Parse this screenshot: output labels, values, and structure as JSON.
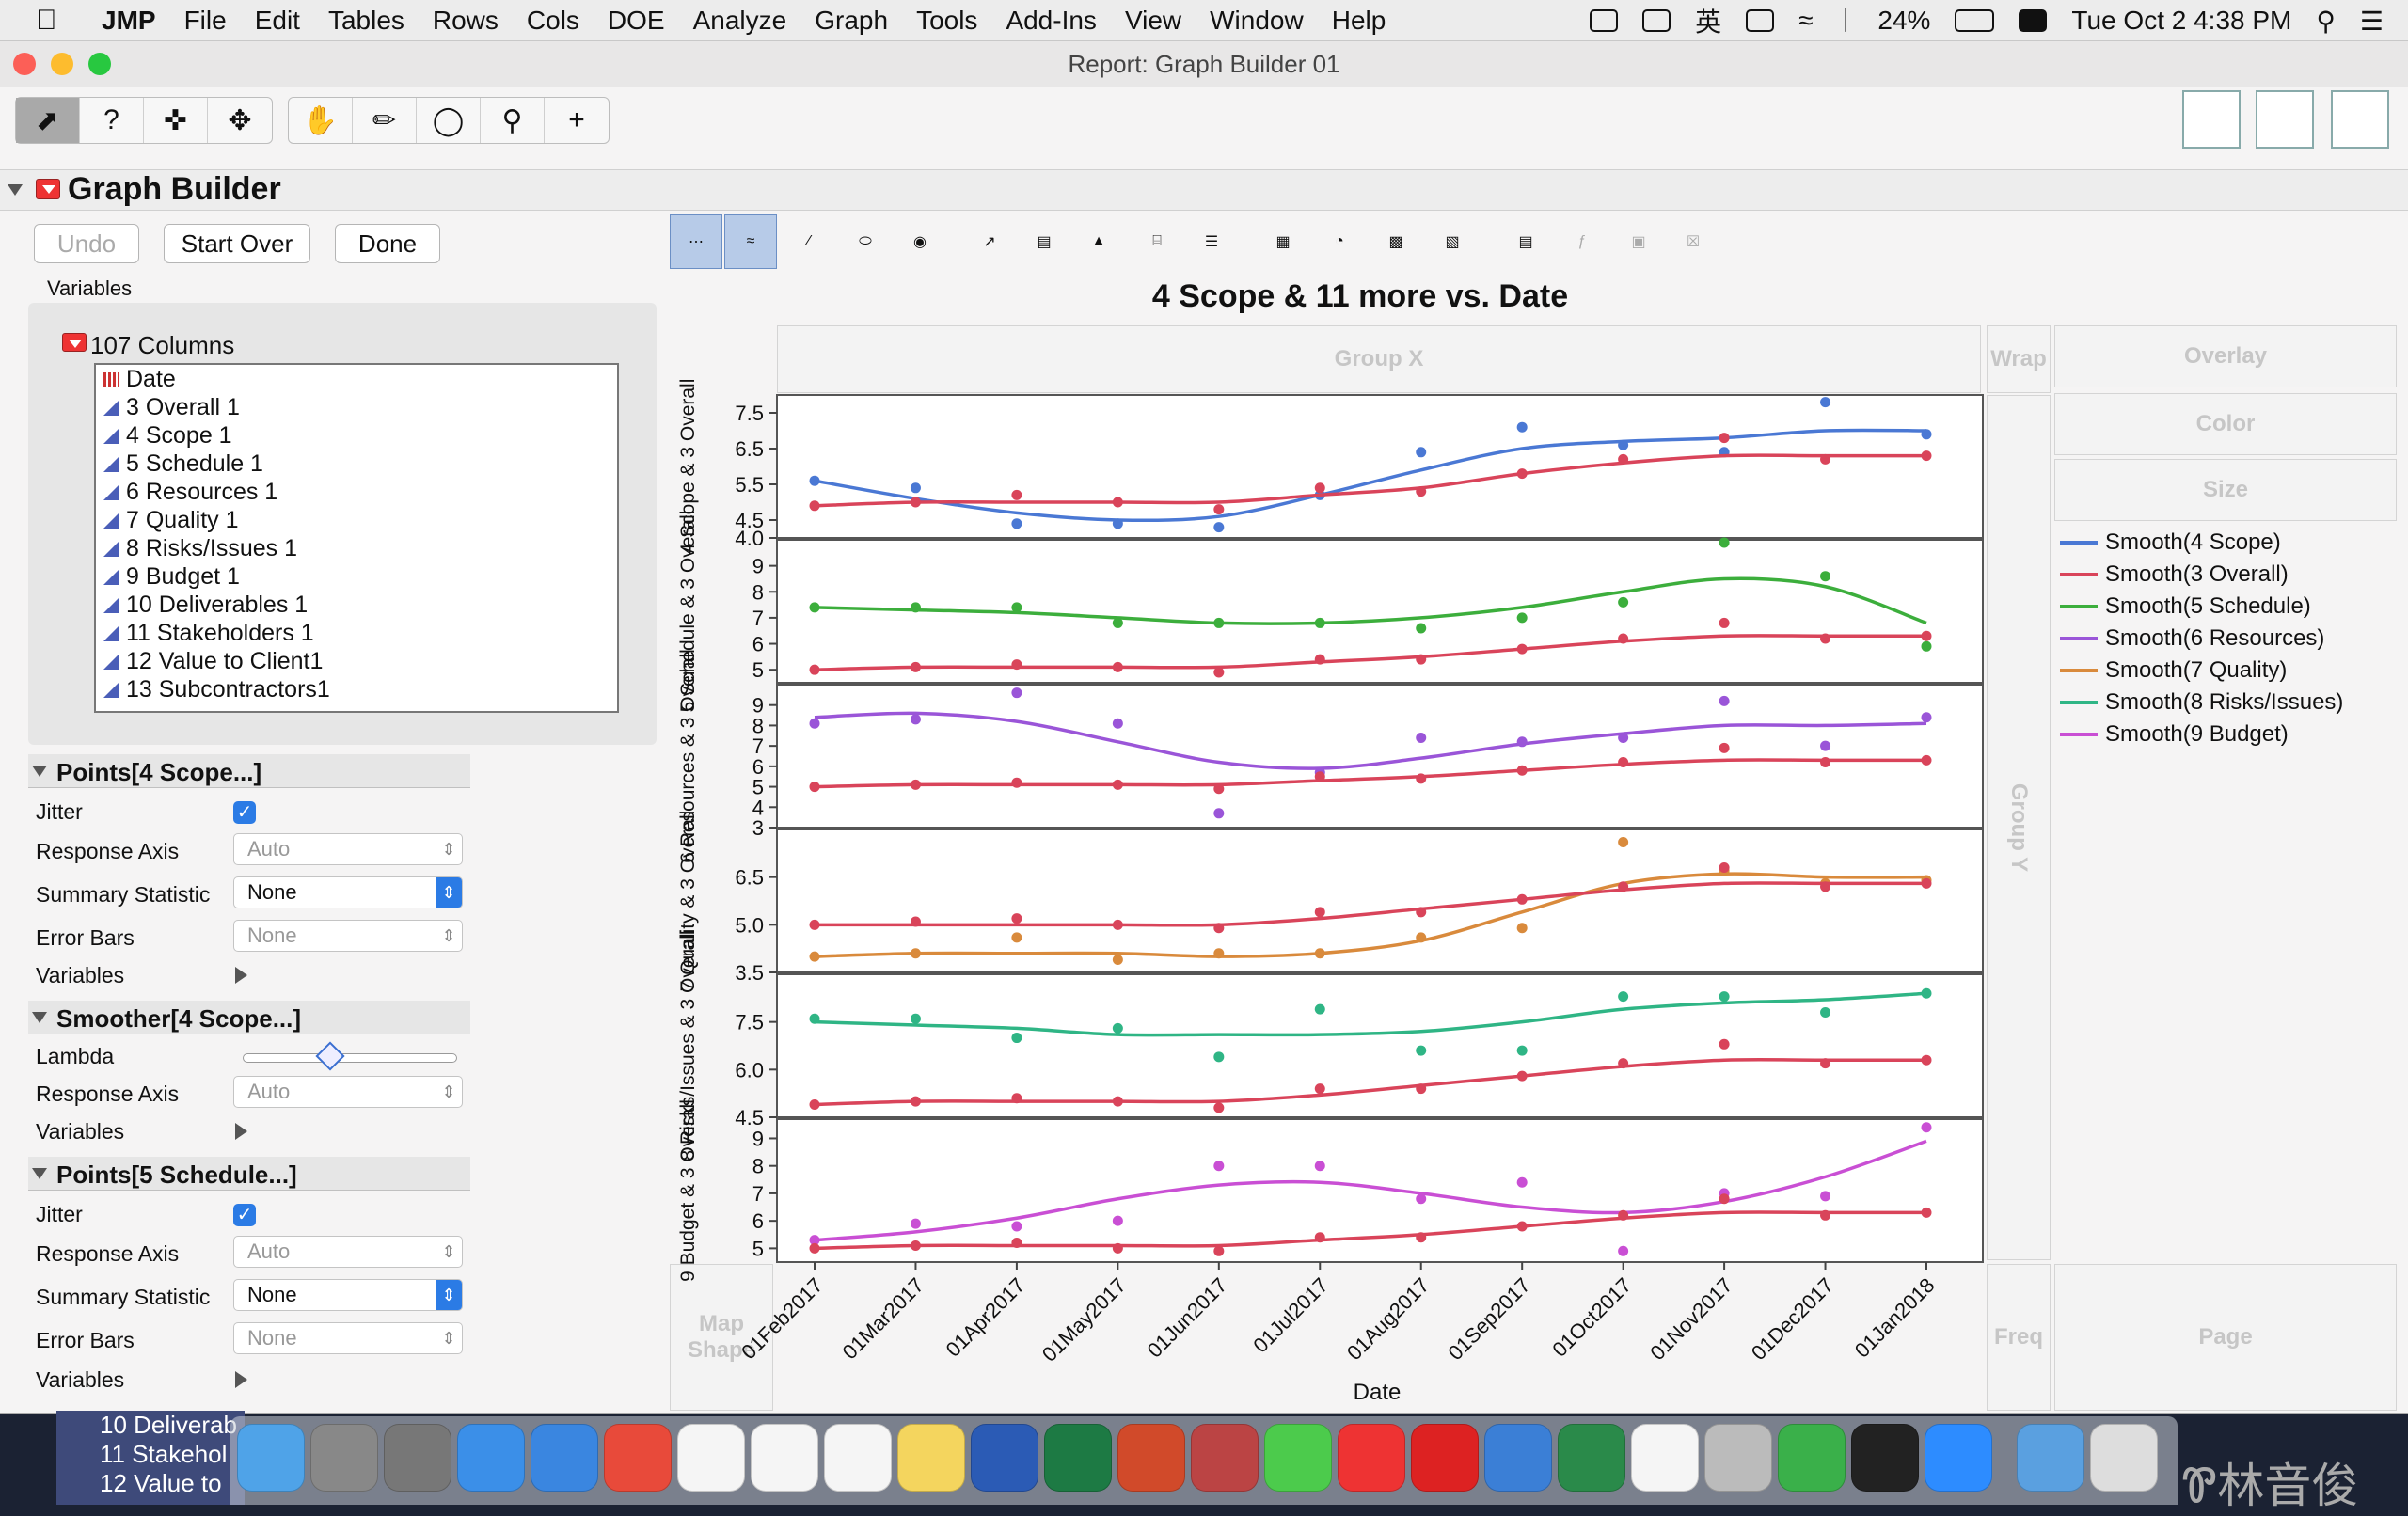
{
  "menubar": {
    "app": "JMP",
    "items": [
      "File",
      "Edit",
      "Tables",
      "Rows",
      "Cols",
      "DOE",
      "Analyze",
      "Graph",
      "Tools",
      "Add-Ins",
      "View",
      "Window",
      "Help"
    ],
    "battery": "24%",
    "ime": "英",
    "clock": "Tue Oct 2  4:38 PM"
  },
  "window": {
    "title": "Report: Graph Builder 01"
  },
  "graph_builder": {
    "title": "Graph Builder",
    "undo": "Undo",
    "start_over": "Start Over",
    "done": "Done",
    "variables": "Variables"
  },
  "columns": {
    "header": "107 Columns",
    "items": [
      "Date",
      "3 Overall 1",
      "4 Scope 1",
      "5 Schedule 1",
      "6 Resources 1",
      "7 Quality 1",
      "8 Risks/Issues  1",
      "9 Budget 1",
      "10 Deliverables 1",
      "11 Stakeholders 1",
      "12 Value to Client1",
      "13 Subcontractors1"
    ]
  },
  "sections": {
    "points1": {
      "title": "Points[4 Scope...]",
      "jitter": "Jitter",
      "response_axis": "Response Axis",
      "response_axis_value": "Auto",
      "summary_statistic": "Summary Statistic",
      "summary_value": "None",
      "error_bars": "Error Bars",
      "error_bars_value": "None",
      "variables": "Variables"
    },
    "smoother": {
      "title": "Smoother[4 Scope...]",
      "lambda": "Lambda",
      "response_axis": "Response Axis",
      "response_axis_value": "Auto",
      "variables": "Variables"
    },
    "points2": {
      "title": "Points[5 Schedule...]",
      "jitter": "Jitter",
      "response_axis": "Response Axis",
      "response_axis_value": "Auto",
      "summary_statistic": "Summary Statistic",
      "summary_value": "None",
      "error_bars": "Error Bars",
      "error_bars_value": "None",
      "variables": "Variables"
    }
  },
  "zones": {
    "group_x": "Group X",
    "wrap": "Wrap",
    "overlay": "Overlay",
    "color": "Color",
    "size": "Size",
    "group_y": "Group Y",
    "map_shape": "Map Shape",
    "freq": "Freq",
    "page": "Page"
  },
  "legend": [
    {
      "label": "Smooth(4 Scope)",
      "color": "#4a78d4"
    },
    {
      "label": "Smooth(3 Overall)",
      "color": "#d9445a"
    },
    {
      "label": "Smooth(5 Schedule)",
      "color": "#3cae3c"
    },
    {
      "label": "Smooth(6 Resources)",
      "color": "#9a55d8"
    },
    {
      "label": "Smooth(7 Quality)",
      "color": "#d98a3c"
    },
    {
      "label": "Smooth(8 Risks/Issues)",
      "color": "#2fb585"
    },
    {
      "label": "Smooth(9 Budget)",
      "color": "#c94fd4"
    }
  ],
  "background": {
    "left_items": [
      "10 Deliverab",
      "11 Stakehol",
      "12 Value to"
    ],
    "right_text": "Ꮘ林音俊"
  },
  "chart_data": {
    "type": "line",
    "title": "4 Scope & 11 more vs. Date",
    "xlabel": "Date",
    "x": [
      "01Feb2017",
      "01Mar2017",
      "01Apr2017",
      "01May2017",
      "01Jun2017",
      "01Jul2017",
      "01Aug2017",
      "01Sep2017",
      "01Oct2017",
      "01Nov2017",
      "01Dec2017",
      "01Jan2018"
    ],
    "grid": false,
    "legend_position": "right",
    "panels": [
      {
        "ylabel": "4 Scope & 3 Overall",
        "ylim": [
          4.0,
          8.0
        ],
        "yticks": [
          "7.5",
          "6.5",
          "5.5",
          "4.5",
          "4.0"
        ],
        "series": [
          {
            "name": "4 Scope",
            "points": [
              5.6,
              5.4,
              4.4,
              4.4,
              4.3,
              5.2,
              6.4,
              7.1,
              6.6,
              6.4,
              7.8,
              6.9
            ],
            "smooth": [
              5.6,
              5.1,
              4.7,
              4.5,
              4.6,
              5.2,
              5.9,
              6.5,
              6.7,
              6.8,
              7.0,
              7.0
            ]
          },
          {
            "name": "3 Overall",
            "points": [
              4.9,
              5.0,
              5.2,
              5.0,
              4.8,
              5.4,
              5.3,
              5.8,
              6.2,
              6.8,
              6.2,
              6.3
            ],
            "smooth": [
              4.9,
              5.0,
              5.0,
              5.0,
              5.0,
              5.2,
              5.4,
              5.8,
              6.1,
              6.3,
              6.3,
              6.3
            ]
          }
        ]
      },
      {
        "ylabel": "5 Schedule & 3 Overall",
        "ylim": [
          4.5,
          10
        ],
        "yticks": [
          "9",
          "8",
          "7",
          "6",
          "5"
        ],
        "series": [
          {
            "name": "5 Schedule",
            "points": [
              7.4,
              7.4,
              7.4,
              6.8,
              6.8,
              6.8,
              6.6,
              7.0,
              7.6,
              9.9,
              8.6,
              5.9
            ],
            "smooth": [
              7.4,
              7.3,
              7.2,
              7.0,
              6.8,
              6.8,
              7.0,
              7.4,
              8.0,
              8.5,
              8.2,
              6.8
            ]
          },
          {
            "name": "3 Overall",
            "points": [
              5.0,
              5.1,
              5.2,
              5.1,
              4.9,
              5.4,
              5.4,
              5.8,
              6.2,
              6.8,
              6.2,
              6.3
            ],
            "smooth": [
              5.0,
              5.1,
              5.1,
              5.1,
              5.1,
              5.3,
              5.5,
              5.8,
              6.1,
              6.3,
              6.3,
              6.3
            ]
          }
        ]
      },
      {
        "ylabel": "6 Resources & 3 Overall",
        "ylim": [
          3,
          10
        ],
        "yticks": [
          "9",
          "8",
          "7",
          "6",
          "5",
          "4",
          "3"
        ],
        "series": [
          {
            "name": "6 Resources",
            "points": [
              8.1,
              8.3,
              9.6,
              8.1,
              3.7,
              5.7,
              7.4,
              7.2,
              7.4,
              9.2,
              7.0,
              8.4
            ],
            "smooth": [
              8.4,
              8.6,
              8.2,
              7.2,
              6.2,
              5.9,
              6.4,
              7.1,
              7.6,
              8.0,
              8.0,
              8.1
            ]
          },
          {
            "name": "3 Overall",
            "points": [
              5.0,
              5.1,
              5.2,
              5.1,
              4.9,
              5.5,
              5.4,
              5.8,
              6.2,
              6.9,
              6.2,
              6.3
            ],
            "smooth": [
              5.0,
              5.1,
              5.1,
              5.1,
              5.1,
              5.3,
              5.5,
              5.8,
              6.1,
              6.3,
              6.3,
              6.3
            ]
          }
        ]
      },
      {
        "ylabel": "7 Quality & 3 Overall",
        "ylim": [
          3.5,
          8.0
        ],
        "yticks": [
          "6.5",
          "5.0",
          "3.5"
        ],
        "series": [
          {
            "name": "7 Quality",
            "points": [
              4.0,
              4.1,
              4.6,
              3.9,
              4.1,
              4.1,
              4.6,
              4.9,
              7.6,
              6.7,
              6.3,
              6.4
            ],
            "smooth": [
              4.0,
              4.1,
              4.1,
              4.1,
              4.0,
              4.1,
              4.5,
              5.4,
              6.3,
              6.6,
              6.5,
              6.5
            ]
          },
          {
            "name": "3 Overall",
            "points": [
              5.0,
              5.1,
              5.2,
              5.0,
              4.9,
              5.4,
              5.4,
              5.8,
              6.2,
              6.8,
              6.2,
              6.3
            ],
            "smooth": [
              5.0,
              5.0,
              5.0,
              5.0,
              5.0,
              5.2,
              5.5,
              5.8,
              6.1,
              6.3,
              6.3,
              6.3
            ]
          }
        ]
      },
      {
        "ylabel": "8 Risks/Issues & 3 Overall",
        "ylim": [
          4.5,
          9.0
        ],
        "yticks": [
          "7.5",
          "6.0",
          "4.5"
        ],
        "series": [
          {
            "name": "8 Risks/Issues",
            "points": [
              7.6,
              7.6,
              7.0,
              7.3,
              6.4,
              7.9,
              6.6,
              6.6,
              8.3,
              8.3,
              7.8,
              8.4
            ],
            "smooth": [
              7.5,
              7.4,
              7.3,
              7.1,
              7.1,
              7.1,
              7.2,
              7.5,
              7.9,
              8.1,
              8.2,
              8.4
            ]
          },
          {
            "name": "3 Overall",
            "points": [
              4.9,
              5.0,
              5.1,
              5.0,
              4.8,
              5.4,
              5.4,
              5.8,
              6.2,
              6.8,
              6.2,
              6.3
            ],
            "smooth": [
              4.9,
              5.0,
              5.0,
              5.0,
              5.0,
              5.2,
              5.5,
              5.8,
              6.1,
              6.3,
              6.3,
              6.3
            ]
          }
        ]
      },
      {
        "ylabel": "9 Budget & 3 Overall",
        "ylim": [
          4.5,
          9.7
        ],
        "yticks": [
          "9",
          "8",
          "7",
          "6",
          "5"
        ],
        "series": [
          {
            "name": "9 Budget",
            "points": [
              5.3,
              5.9,
              5.8,
              6.0,
              8.0,
              8.0,
              6.8,
              7.4,
              4.9,
              7.0,
              6.9,
              9.4
            ],
            "smooth": [
              5.3,
              5.6,
              6.1,
              6.8,
              7.3,
              7.4,
              7.0,
              6.5,
              6.3,
              6.7,
              7.6,
              8.9
            ]
          },
          {
            "name": "3 Overall",
            "points": [
              5.0,
              5.1,
              5.2,
              5.0,
              4.9,
              5.4,
              5.4,
              5.8,
              6.2,
              6.8,
              6.2,
              6.3
            ],
            "smooth": [
              5.0,
              5.1,
              5.1,
              5.1,
              5.1,
              5.3,
              5.5,
              5.8,
              6.1,
              6.3,
              6.3,
              6.3
            ]
          }
        ]
      }
    ]
  }
}
